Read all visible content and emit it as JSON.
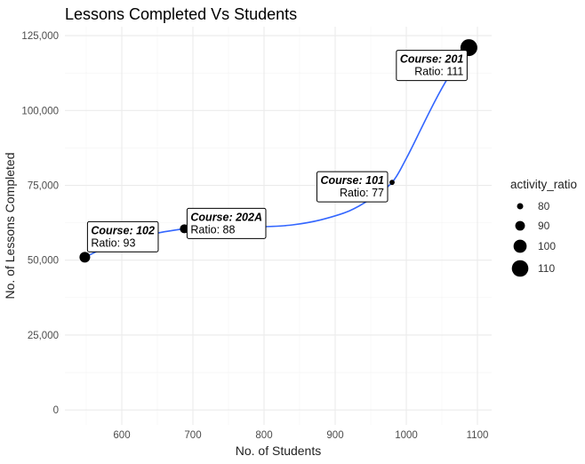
{
  "chart_data": {
    "type": "scatter",
    "title": "Lessons Completed Vs Students",
    "xlabel": "No. of Students",
    "ylabel": "No. of Lessons Completed",
    "xlim": [
      520,
      1120
    ],
    "ylim": [
      -5000,
      128000
    ],
    "x_ticks": [
      600,
      700,
      800,
      900,
      1000,
      1100
    ],
    "x_tick_labels": [
      "600",
      "700",
      "800",
      "900",
      "1000",
      "1100"
    ],
    "y_ticks": [
      0,
      25000,
      50000,
      75000,
      100000,
      125000
    ],
    "y_tick_labels": [
      "0",
      "25,000",
      "50,000",
      "75,000",
      "100,000",
      "125,000"
    ],
    "grid": true,
    "points": [
      {
        "course": "102",
        "students": 548,
        "lessons": 51000,
        "activity_ratio": 93
      },
      {
        "course": "202A",
        "students": 688,
        "lessons": 60500,
        "activity_ratio": 88
      },
      {
        "course": "101",
        "students": 980,
        "lessons": 76000,
        "activity_ratio": 77
      },
      {
        "course": "201",
        "students": 1088,
        "lessons": 121000,
        "activity_ratio": 111
      }
    ],
    "annotations": [
      {
        "course_label": "Course: 102",
        "ratio_label": "Ratio: 93",
        "align": "left"
      },
      {
        "course_label": "Course: 202A",
        "ratio_label": "Ratio: 88",
        "align": "left"
      },
      {
        "course_label": "Course: 101",
        "ratio_label": "Ratio: 77",
        "align": "right"
      },
      {
        "course_label": "Course: 201",
        "ratio_label": "Ratio: 111",
        "align": "right"
      }
    ],
    "smooth_line": {
      "color": "#3366ff",
      "x": [
        548,
        580,
        620,
        660,
        688,
        720,
        760,
        800,
        840,
        880,
        920,
        950,
        980,
        1000,
        1020,
        1040,
        1060,
        1075,
        1088
      ],
      "y": [
        51000,
        54500,
        57500,
        59500,
        60500,
        61300,
        61200,
        61200,
        61800,
        63500,
        66500,
        70500,
        76000,
        84000,
        93500,
        103000,
        111500,
        117000,
        121000
      ]
    },
    "legend": {
      "title": "activity_ratio",
      "position": "right",
      "entries": [
        {
          "label": "80",
          "value": 80
        },
        {
          "label": "90",
          "value": 90
        },
        {
          "label": "100",
          "value": 100
        },
        {
          "label": "110",
          "value": 110
        }
      ]
    },
    "colors": {
      "point": "#000000",
      "grid": "#ebebeb",
      "text": "#4d4d4d"
    }
  }
}
